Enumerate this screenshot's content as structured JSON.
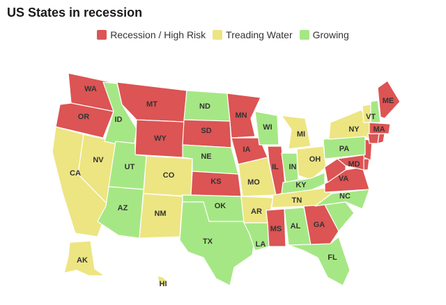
{
  "title": "US States in recession",
  "colors": {
    "red": "#dc5454",
    "yellow": "#ede582",
    "green": "#a6e785"
  },
  "legend": [
    {
      "label": "Recession / High Risk",
      "color": "red"
    },
    {
      "label": "Treading Water",
      "color": "yellow"
    },
    {
      "label": "Growing",
      "color": "green"
    }
  ],
  "states": [
    {
      "code": "WA",
      "status": "red"
    },
    {
      "code": "OR",
      "status": "red"
    },
    {
      "code": "CA",
      "status": "yellow"
    },
    {
      "code": "NV",
      "status": "yellow"
    },
    {
      "code": "ID",
      "status": "green"
    },
    {
      "code": "MT",
      "status": "red"
    },
    {
      "code": "WY",
      "status": "red"
    },
    {
      "code": "UT",
      "status": "green"
    },
    {
      "code": "AZ",
      "status": "green"
    },
    {
      "code": "CO",
      "status": "yellow"
    },
    {
      "code": "NM",
      "status": "yellow"
    },
    {
      "code": "ND",
      "status": "green"
    },
    {
      "code": "SD",
      "status": "red"
    },
    {
      "code": "NE",
      "status": "green"
    },
    {
      "code": "KS",
      "status": "red"
    },
    {
      "code": "OK",
      "status": "green"
    },
    {
      "code": "TX",
      "status": "green"
    },
    {
      "code": "MN",
      "status": "red"
    },
    {
      "code": "IA",
      "status": "red"
    },
    {
      "code": "MO",
      "status": "yellow"
    },
    {
      "code": "AR",
      "status": "yellow"
    },
    {
      "code": "LA",
      "status": "green"
    },
    {
      "code": "WI",
      "status": "green"
    },
    {
      "code": "IL",
      "status": "red"
    },
    {
      "code": "MI",
      "status": "yellow"
    },
    {
      "code": "IN",
      "status": "green"
    },
    {
      "code": "OH",
      "status": "yellow"
    },
    {
      "code": "KY",
      "status": "green"
    },
    {
      "code": "TN",
      "status": "yellow"
    },
    {
      "code": "MS",
      "status": "red"
    },
    {
      "code": "AL",
      "status": "green"
    },
    {
      "code": "GA",
      "status": "red"
    },
    {
      "code": "FL",
      "status": "green"
    },
    {
      "code": "SC",
      "status": "green"
    },
    {
      "code": "NC",
      "status": "green"
    },
    {
      "code": "VA",
      "status": "red"
    },
    {
      "code": "WV",
      "status": "red"
    },
    {
      "code": "MD",
      "status": "red"
    },
    {
      "code": "DE",
      "status": "red"
    },
    {
      "code": "NJ",
      "status": "red"
    },
    {
      "code": "PA",
      "status": "green"
    },
    {
      "code": "NY",
      "status": "yellow"
    },
    {
      "code": "VT",
      "status": "yellow"
    },
    {
      "code": "NH",
      "status": "green"
    },
    {
      "code": "ME",
      "status": "red"
    },
    {
      "code": "MA",
      "status": "red"
    },
    {
      "code": "CT",
      "status": "red"
    },
    {
      "code": "RI",
      "status": "red"
    },
    {
      "code": "AK",
      "status": "yellow"
    },
    {
      "code": "HI",
      "status": "yellow"
    }
  ],
  "labels": [
    "WA",
    "OR",
    "CA",
    "NV",
    "ID",
    "MT",
    "WY",
    "UT",
    "AZ",
    "CO",
    "NM",
    "ND",
    "SD",
    "NE",
    "KS",
    "OK",
    "TX",
    "MN",
    "IA",
    "MO",
    "AR",
    "LA",
    "WI",
    "IL",
    "MI",
    "IN",
    "OH",
    "KY",
    "TN",
    "MS",
    "AL",
    "GA",
    "FL",
    "NC",
    "VA",
    "MD",
    "PA",
    "NY",
    "VT",
    "ME",
    "MA",
    "AK",
    "HI"
  ]
}
